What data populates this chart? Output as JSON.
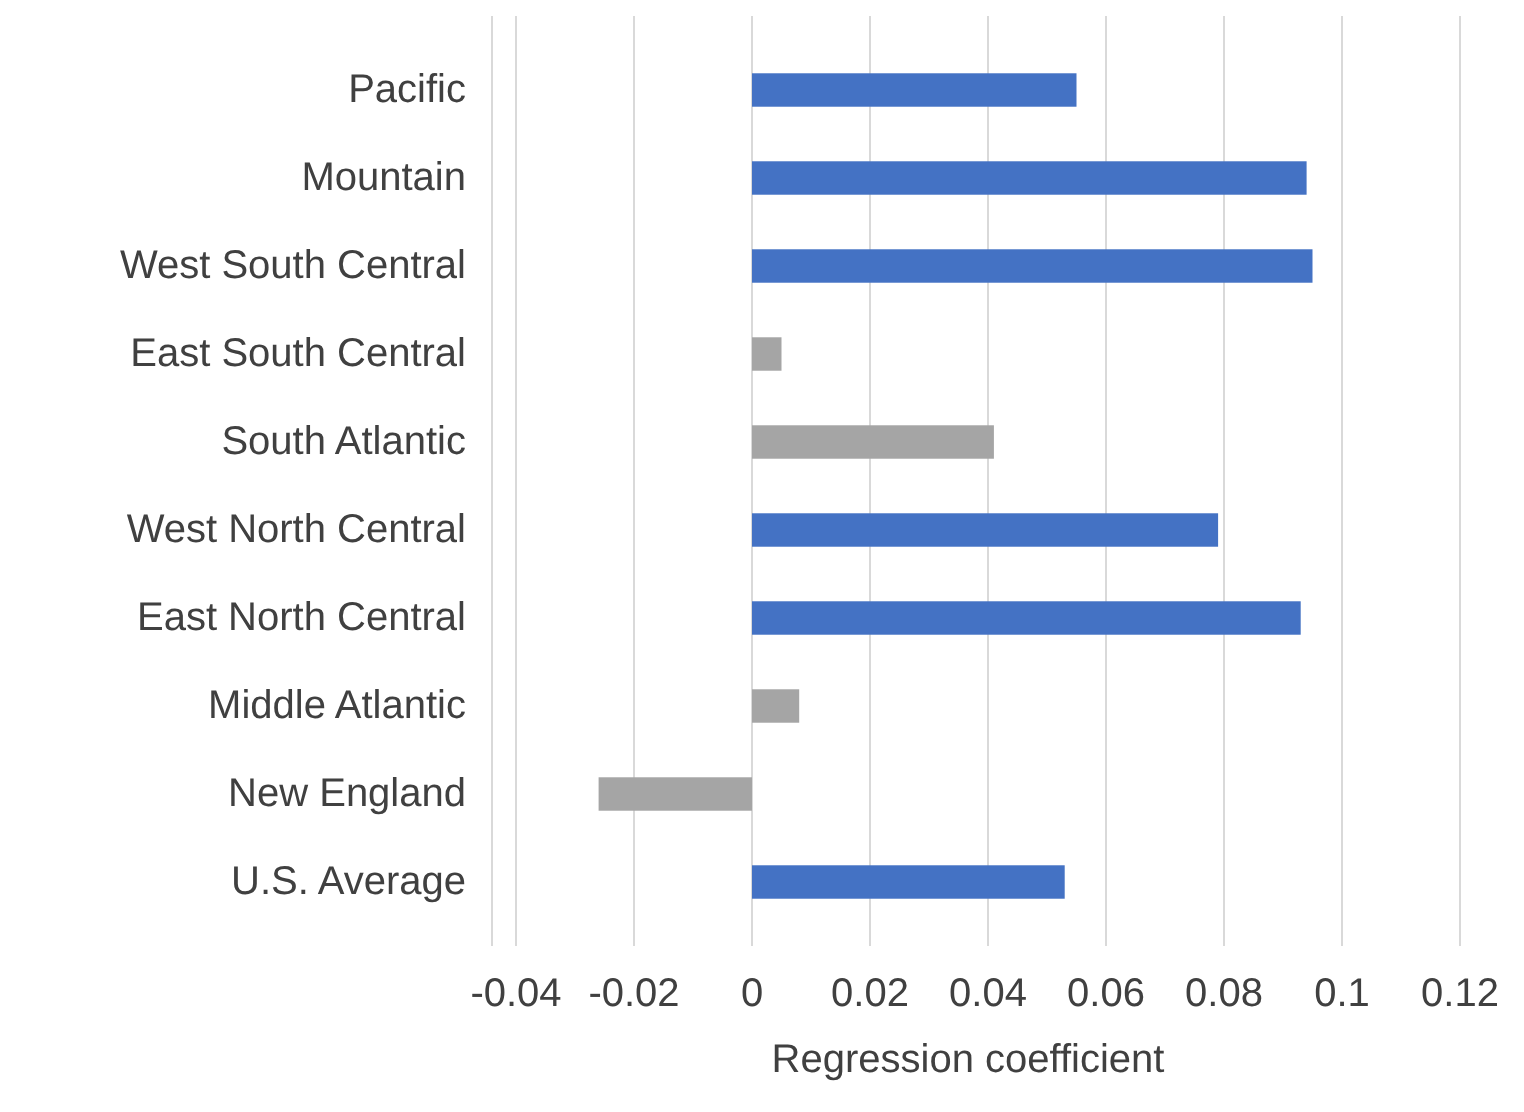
{
  "chart_data": {
    "type": "bar",
    "orientation": "horizontal",
    "xlabel": "Regression coefficient",
    "categories": [
      "Pacific",
      "Mountain",
      "West South Central",
      "East South Central",
      "South Atlantic",
      "West North Central",
      "East North Central",
      "Middle Atlantic",
      "New England",
      "U.S. Average"
    ],
    "values": [
      0.055,
      0.094,
      0.095,
      0.005,
      0.041,
      0.079,
      0.093,
      0.008,
      -0.026,
      0.053
    ],
    "colors": [
      "#4472c4",
      "#4472c4",
      "#4472c4",
      "#a5a5a5",
      "#a5a5a5",
      "#4472c4",
      "#4472c4",
      "#a5a5a5",
      "#a5a5a5",
      "#4472c4"
    ],
    "xlim": [
      -0.04,
      0.12
    ],
    "xticks": [
      -0.04,
      -0.02,
      0,
      0.02,
      0.04,
      0.06,
      0.08,
      0.1,
      0.12
    ],
    "grid": "x"
  }
}
